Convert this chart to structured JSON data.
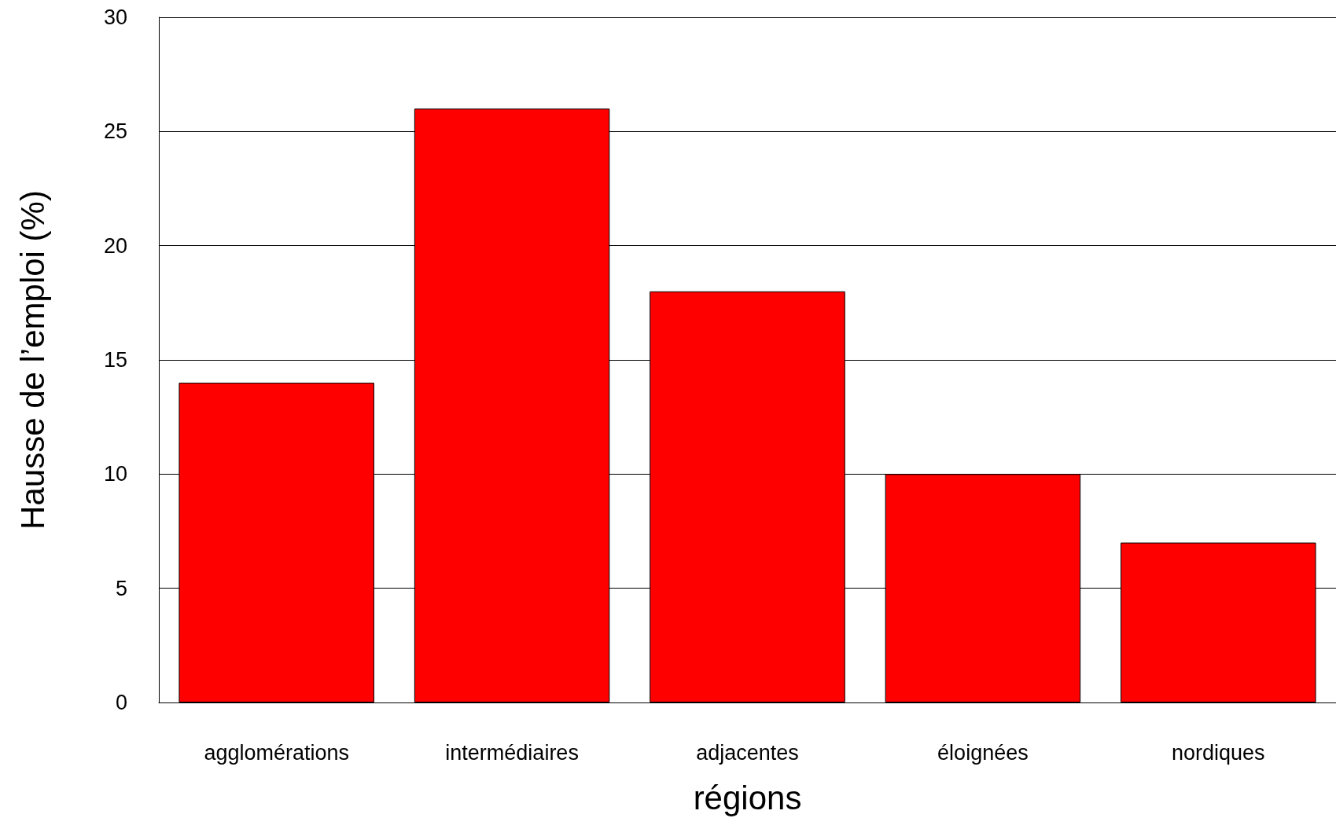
{
  "chart_data": {
    "type": "bar",
    "xlabel": "régions",
    "ylabel": "Hausse de l’emploi (%)",
    "categories": [
      "agglomérations",
      "intermédiaires",
      "adjacentes",
      "éloignées",
      "nordiques"
    ],
    "values": [
      14,
      26,
      18,
      10,
      7
    ],
    "color": "#ff0000",
    "ylim": [
      0,
      30
    ],
    "yticks": [
      0,
      5,
      10,
      15,
      20,
      25,
      30
    ],
    "grid": "y"
  }
}
